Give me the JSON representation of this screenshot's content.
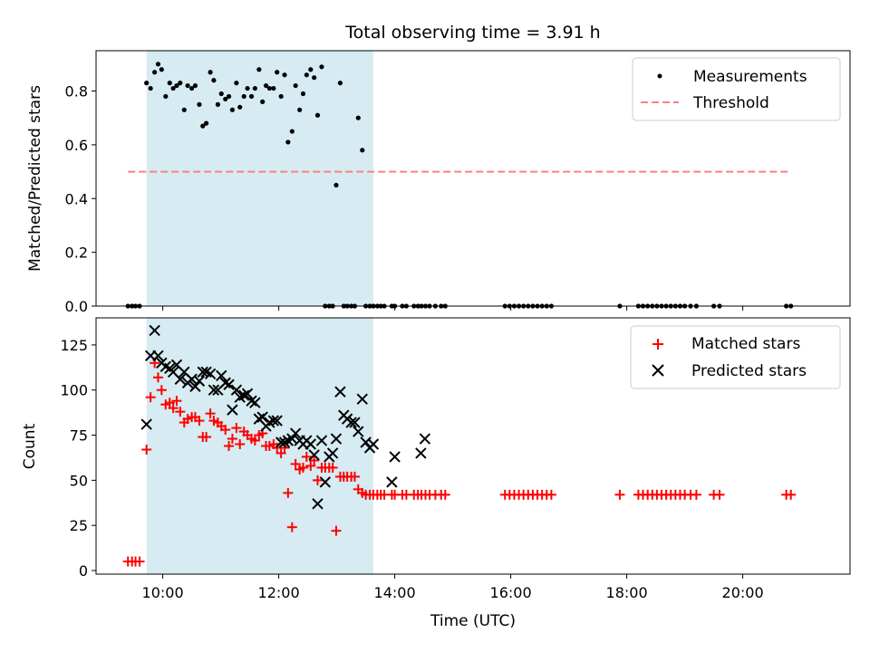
{
  "chart_data": [
    {
      "type": "scatter",
      "title": "Total observing time = 3.91 h",
      "xlabel": "",
      "ylabel": "Matched/Predicted stars",
      "ylim": [
        0,
        0.95
      ],
      "yticks": [
        0.0,
        0.2,
        0.4,
        0.6,
        0.8
      ],
      "ytick_labels": [
        "0.0",
        "0.2",
        "0.4",
        "0.6",
        "0.8"
      ],
      "xlim": [
        8.85,
        21.85
      ],
      "xticks": [
        10,
        12,
        14,
        16,
        18,
        20
      ],
      "shaded_interval": [
        9.72,
        13.63
      ],
      "shade_color": "#add8e6",
      "legend_position": "top-right",
      "threshold": {
        "name": "Threshold",
        "y": 0.5,
        "x_range": [
          9.4,
          20.83
        ],
        "color": "#ff7f7f"
      },
      "series": [
        {
          "name": "Measurements",
          "color": "#000000",
          "marker": "dot",
          "x": [
            9.4,
            9.47,
            9.53,
            9.6,
            9.72,
            9.79,
            9.86,
            9.92,
            9.98,
            10.05,
            10.12,
            10.18,
            10.24,
            10.3,
            10.37,
            10.43,
            10.5,
            10.56,
            10.63,
            10.69,
            10.75,
            10.82,
            10.88,
            10.95,
            11.01,
            11.08,
            11.14,
            11.2,
            11.27,
            11.33,
            11.4,
            11.46,
            11.53,
            11.59,
            11.66,
            11.72,
            11.78,
            11.84,
            11.91,
            11.97,
            12.04,
            12.1,
            12.16,
            12.23,
            12.29,
            12.36,
            12.42,
            12.48,
            12.55,
            12.61,
            12.67,
            12.74,
            12.8,
            12.87,
            12.93,
            12.99,
            13.06,
            13.12,
            13.18,
            13.25,
            13.31,
            13.37,
            13.44,
            13.5,
            13.57,
            13.63,
            13.7,
            13.76,
            13.82,
            13.95,
            14.0,
            14.13,
            14.2,
            14.33,
            14.4,
            14.46,
            14.53,
            14.6,
            14.7,
            14.8,
            14.87,
            15.9,
            15.98,
            16.06,
            16.14,
            16.22,
            16.3,
            16.38,
            16.46,
            16.54,
            16.62,
            16.7,
            17.88,
            18.2,
            18.28,
            18.36,
            18.44,
            18.52,
            18.6,
            18.68,
            18.76,
            18.84,
            18.92,
            19.0,
            19.1,
            19.2,
            19.5,
            19.6,
            20.75,
            20.83
          ],
          "y": [
            0,
            0,
            0,
            0,
            0.83,
            0.81,
            0.87,
            0.9,
            0.88,
            0.78,
            0.83,
            0.81,
            0.82,
            0.83,
            0.73,
            0.82,
            0.81,
            0.82,
            0.75,
            0.67,
            0.68,
            0.87,
            0.84,
            0.75,
            0.79,
            0.77,
            0.78,
            0.73,
            0.83,
            0.74,
            0.78,
            0.81,
            0.78,
            0.81,
            0.88,
            0.76,
            0.82,
            0.81,
            0.81,
            0.87,
            0.78,
            0.86,
            0.61,
            0.65,
            0.82,
            0.73,
            0.79,
            0.86,
            0.88,
            0.85,
            0.71,
            0.89,
            0,
            0,
            0,
            0.45,
            0.83,
            0,
            0,
            0,
            0,
            0.7,
            0.58,
            0,
            0,
            0,
            0,
            0,
            0,
            0,
            0,
            0,
            0,
            0,
            0,
            0,
            0,
            0,
            0,
            0,
            0,
            0,
            0,
            0,
            0,
            0,
            0,
            0,
            0,
            0,
            0,
            0,
            0,
            0,
            0,
            0,
            0,
            0,
            0,
            0,
            0,
            0,
            0,
            0,
            0,
            0,
            0,
            0,
            0,
            0
          ]
        }
      ]
    },
    {
      "type": "scatter",
      "title": "",
      "xlabel": "Time (UTC)",
      "ylabel": "Count",
      "ylim": [
        -2,
        140
      ],
      "yticks": [
        0,
        25,
        50,
        75,
        100,
        125
      ],
      "ytick_labels": [
        "0",
        "25",
        "50",
        "75",
        "100",
        "125"
      ],
      "xlim": [
        8.85,
        21.85
      ],
      "xticks": [
        10,
        12,
        14,
        16,
        18,
        20
      ],
      "xtick_labels": [
        "10:00",
        "12:00",
        "14:00",
        "16:00",
        "18:00",
        "20:00"
      ],
      "shaded_interval": [
        9.72,
        13.63
      ],
      "shade_color": "#add8e6",
      "legend_position": "top-right",
      "series": [
        {
          "name": "Matched stars",
          "color": "#ff0000",
          "marker": "plus",
          "x": [
            9.4,
            9.47,
            9.53,
            9.6,
            9.72,
            9.79,
            9.86,
            9.92,
            9.98,
            10.05,
            10.12,
            10.18,
            10.24,
            10.3,
            10.37,
            10.43,
            10.5,
            10.56,
            10.63,
            10.69,
            10.75,
            10.82,
            10.88,
            10.95,
            11.01,
            11.08,
            11.14,
            11.2,
            11.27,
            11.33,
            11.4,
            11.46,
            11.53,
            11.59,
            11.66,
            11.72,
            11.78,
            11.84,
            11.91,
            11.97,
            12.04,
            12.1,
            12.16,
            12.23,
            12.29,
            12.36,
            12.42,
            12.48,
            12.55,
            12.61,
            12.67,
            12.74,
            12.8,
            12.87,
            12.93,
            12.99,
            13.06,
            13.12,
            13.18,
            13.25,
            13.31,
            13.37,
            13.44,
            13.5,
            13.57,
            13.63,
            13.7,
            13.76,
            13.82,
            13.95,
            14.0,
            14.13,
            14.2,
            14.33,
            14.4,
            14.46,
            14.53,
            14.6,
            14.7,
            14.8,
            14.87,
            15.9,
            15.98,
            16.06,
            16.14,
            16.22,
            16.3,
            16.38,
            16.46,
            16.54,
            16.62,
            16.7,
            17.88,
            18.2,
            18.28,
            18.36,
            18.44,
            18.52,
            18.6,
            18.68,
            18.76,
            18.84,
            18.92,
            19.0,
            19.1,
            19.2,
            19.5,
            19.6,
            20.75,
            20.83
          ],
          "y": [
            5,
            5,
            5,
            5,
            67,
            96,
            115,
            107,
            100,
            92,
            93,
            90,
            94,
            88,
            82,
            84,
            85,
            85,
            83,
            74,
            74,
            87,
            83,
            82,
            80,
            78,
            69,
            73,
            79,
            70,
            77,
            75,
            73,
            72,
            75,
            76,
            69,
            69,
            70,
            68,
            65,
            68,
            43,
            24,
            59,
            56,
            57,
            63,
            58,
            61,
            50,
            57,
            57,
            57,
            57,
            22,
            52,
            52,
            52,
            52,
            52,
            45,
            43,
            42,
            42,
            42,
            42,
            42,
            42,
            42,
            42,
            42,
            42,
            42,
            42,
            42,
            42,
            42,
            42,
            42,
            42,
            42,
            42,
            42,
            42,
            42,
            42,
            42,
            42,
            42,
            42,
            42,
            42,
            42,
            42,
            42,
            42,
            42,
            42,
            42,
            42,
            42,
            42,
            42,
            42,
            42,
            42,
            42,
            42,
            42
          ]
        },
        {
          "name": "Predicted stars",
          "color": "#000000",
          "marker": "x",
          "x": [
            9.72,
            9.79,
            9.86,
            9.92,
            9.98,
            10.05,
            10.12,
            10.18,
            10.24,
            10.3,
            10.37,
            10.43,
            10.5,
            10.56,
            10.63,
            10.69,
            10.75,
            10.82,
            10.88,
            10.95,
            11.01,
            11.08,
            11.14,
            11.2,
            11.27,
            11.33,
            11.4,
            11.46,
            11.53,
            11.59,
            11.66,
            11.72,
            11.78,
            11.84,
            11.91,
            11.97,
            12.04,
            12.1,
            12.16,
            12.23,
            12.29,
            12.36,
            12.42,
            12.48,
            12.55,
            12.61,
            12.67,
            12.74,
            12.8,
            12.87,
            12.93,
            12.99,
            13.06,
            13.12,
            13.18,
            13.25,
            13.31,
            13.37,
            13.44,
            13.5,
            13.57,
            13.63,
            13.95,
            14.0,
            14.45,
            14.52
          ],
          "y": [
            81,
            119,
            133,
            119,
            115,
            113,
            112,
            110,
            114,
            106,
            110,
            104,
            106,
            102,
            105,
            110,
            110,
            109,
            100,
            100,
            108,
            104,
            103,
            89,
            100,
            96,
            97,
            98,
            94,
            93,
            84,
            85,
            80,
            82,
            83,
            83,
            71,
            71,
            72,
            73,
            76,
            72,
            70,
            72,
            70,
            64,
            37,
            72,
            49,
            63,
            65,
            73,
            99,
            86,
            84,
            82,
            82,
            77,
            95,
            71,
            68,
            70,
            49,
            63,
            65,
            73
          ]
        }
      ]
    }
  ]
}
